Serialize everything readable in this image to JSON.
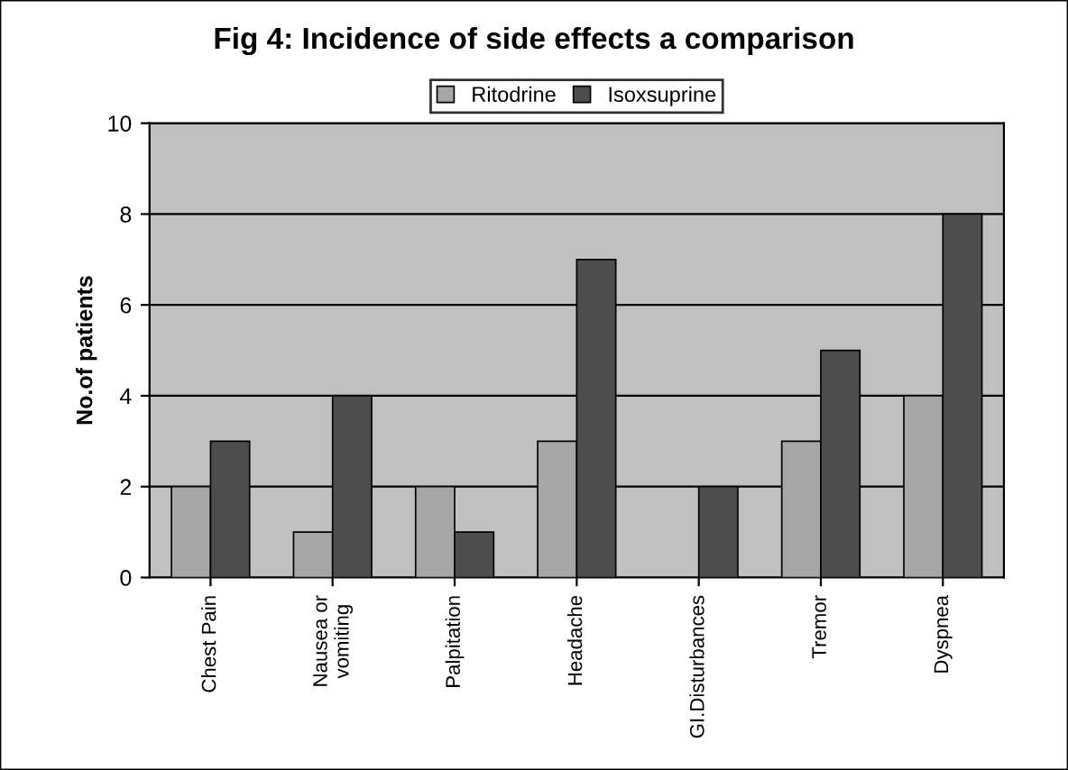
{
  "chart_data": {
    "type": "bar",
    "title": "Fig 4: Incidence of side effects a comparison",
    "ylabel": "No.of patients",
    "categories": [
      "Chest Pain",
      "Nausea or\nvomiting",
      "Palpitation",
      "Headache",
      "GI.Disturbances",
      "Tremor",
      "Dyspnea"
    ],
    "series": [
      {
        "name": "Ritodrine",
        "color": "#a6a6a6",
        "values": [
          2,
          1,
          2,
          3,
          0,
          3,
          4
        ]
      },
      {
        "name": "Isoxsuprine",
        "color": "#4d4d4d",
        "values": [
          3,
          4,
          1,
          7,
          2,
          5,
          8
        ]
      }
    ],
    "ylim": [
      0,
      10
    ],
    "yticks": [
      0,
      2,
      4,
      6,
      8,
      10
    ],
    "grid": "y",
    "legend": "top"
  }
}
